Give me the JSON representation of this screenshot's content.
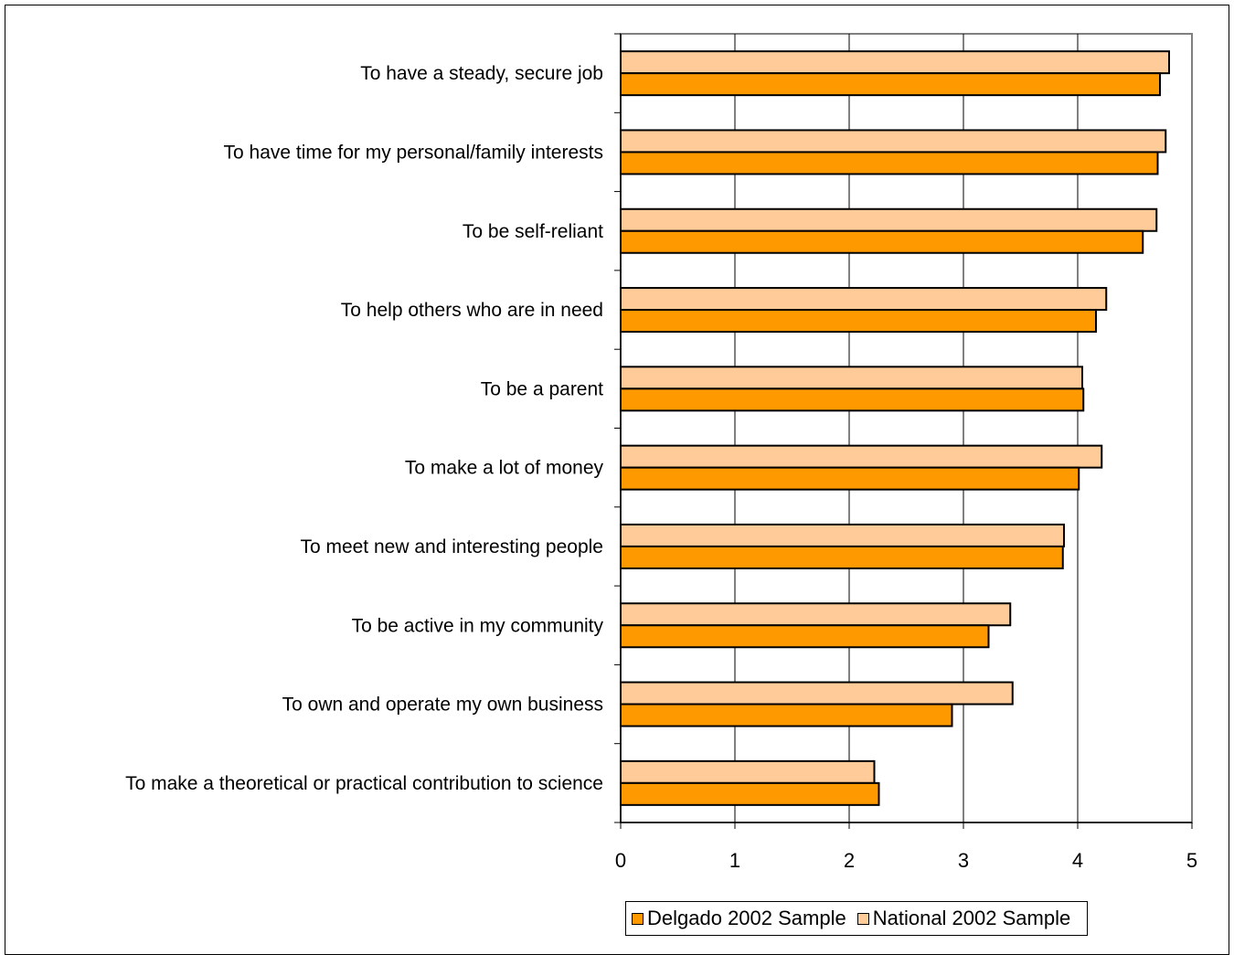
{
  "chart_data": {
    "type": "bar",
    "orientation": "horizontal",
    "categories": [
      "To have a steady, secure job",
      "To have time for my personal/family interests",
      "To be self-reliant",
      "To help others who are in need",
      "To be a parent",
      "To make a lot of money",
      "To meet new and interesting people",
      "To be active in my community",
      "To own and operate my own business",
      "To make a theoretical or practical contribution to science"
    ],
    "series": [
      {
        "name": "Delgado 2002 Sample",
        "color": "#FF9900",
        "values": [
          4.72,
          4.7,
          4.57,
          4.16,
          4.05,
          4.01,
          3.87,
          3.22,
          2.9,
          2.26
        ]
      },
      {
        "name": "National 2002 Sample",
        "color": "#FFCC99",
        "values": [
          4.8,
          4.77,
          4.69,
          4.25,
          4.04,
          4.21,
          3.88,
          3.41,
          3.43,
          2.22
        ]
      }
    ],
    "xlim": [
      0,
      5
    ],
    "xticks": [
      "0",
      "1",
      "2",
      "3",
      "4",
      "5"
    ],
    "grid": true,
    "legend_position": "bottom-right",
    "title": "",
    "xlabel": "",
    "ylabel": ""
  }
}
